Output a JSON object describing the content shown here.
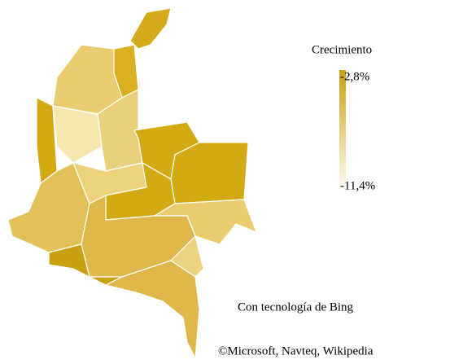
{
  "legend": {
    "title": "Crecimiento",
    "max": {
      "value": -2.8,
      "label": "-2,8%"
    },
    "min": {
      "value": -11.4,
      "label": "-11,4%"
    }
  },
  "credits": [
    "Con tecnología de Bing",
    "©Microsoft, Navteq, Wikipedia"
  ]
}
